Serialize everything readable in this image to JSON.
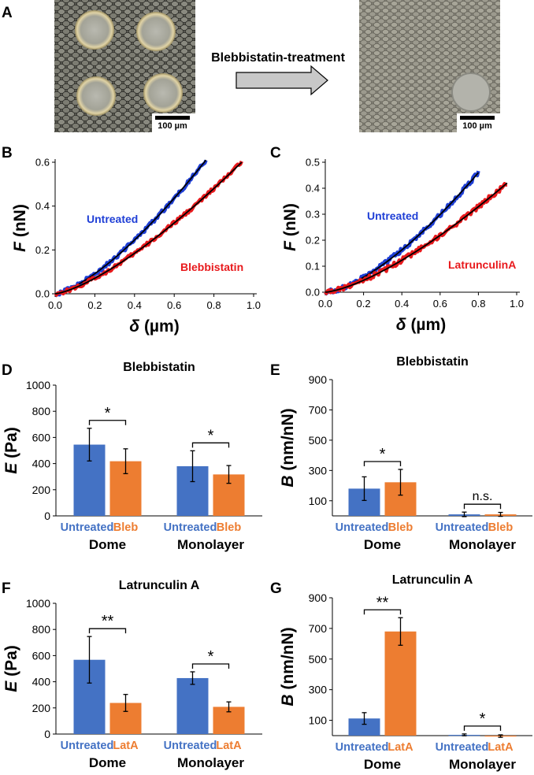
{
  "colors": {
    "untreated_bar": "#4472c4",
    "treated_bar": "#ed7d31",
    "untreated_curve": "#1f3fd6",
    "treated_curve": "#e8191c",
    "fit_line": "#000000",
    "untreated_label": "#1f3fd6",
    "treated_label": "#e8191c",
    "arrow_fill": "#c8c8c8"
  },
  "panel_a": {
    "letter": "A",
    "arrow_label": "Blebbistatin-treatment",
    "scale_bar_left": "100 µm",
    "scale_bar_right": "100 µm"
  },
  "chart_data": [
    {
      "panel": "B",
      "type": "line",
      "x_symbol": "δ",
      "x_unit": "(µm)",
      "y_symbol": "F",
      "y_unit": "(nN)",
      "xlim": [
        0,
        1.0
      ],
      "ylim": [
        0,
        0.6
      ],
      "xticks": [
        "0.0",
        "0.2",
        "0.4",
        "0.6",
        "0.8",
        "1.0"
      ],
      "yticks": [
        "0.0",
        "0.2",
        "0.4",
        "0.6"
      ],
      "series": [
        {
          "name": "Untreated",
          "color_key": "untreated_curve",
          "x_max": 0.76,
          "y_max": 0.61,
          "exponent": 1.42
        },
        {
          "name": "Blebbistatin",
          "color_key": "treated_curve",
          "x_max": 0.94,
          "y_max": 0.6,
          "exponent": 1.38
        }
      ]
    },
    {
      "panel": "C",
      "type": "line",
      "x_symbol": "δ",
      "x_unit": "(µm)",
      "y_symbol": "F",
      "y_unit": "(nN)",
      "xlim": [
        0,
        1.0
      ],
      "ylim": [
        0,
        0.5
      ],
      "xticks": [
        "0.0",
        "0.2",
        "0.4",
        "0.6",
        "0.8",
        "1.0"
      ],
      "yticks": [
        "0.0",
        "0.1",
        "0.2",
        "0.3",
        "0.4",
        "0.5"
      ],
      "series": [
        {
          "name": "Untreated",
          "color_key": "untreated_curve",
          "x_max": 0.8,
          "y_max": 0.46,
          "exponent": 1.5
        },
        {
          "name": "LatrunculinA",
          "color_key": "treated_curve",
          "x_max": 0.95,
          "y_max": 0.42,
          "exponent": 1.42
        }
      ]
    },
    {
      "panel": "D",
      "type": "bar",
      "title": "Blebbistatin",
      "y_symbol": "E",
      "y_unit": "(Pa)",
      "ylim": [
        0,
        1000
      ],
      "yticks": [
        "0",
        "200",
        "400",
        "600",
        "800",
        "1000"
      ],
      "groups": [
        "Dome",
        "Monolayer"
      ],
      "labels": [
        "Untreated",
        "Bleb"
      ],
      "values": [
        [
          545,
          418
        ],
        [
          380,
          317
        ]
      ],
      "errors": [
        [
          125,
          95
        ],
        [
          118,
          68
        ]
      ],
      "significance": [
        "*",
        "*"
      ]
    },
    {
      "panel": "E",
      "type": "bar",
      "title": "Blebbistatin",
      "y_symbol": "B",
      "y_unit": "(nm/nN)",
      "ylim": [
        0,
        900
      ],
      "yticks": [
        "100",
        "300",
        "500",
        "700",
        "900"
      ],
      "groups": [
        "Dome",
        "Monolayer"
      ],
      "labels": [
        "Untreated",
        "Bleb"
      ],
      "values": [
        [
          180,
          222
        ],
        [
          10,
          10
        ]
      ],
      "errors": [
        [
          78,
          85
        ],
        [
          15,
          13
        ]
      ],
      "significance": [
        "*",
        "n.s."
      ]
    },
    {
      "panel": "F",
      "type": "bar",
      "title": "Latrunculin A",
      "y_symbol": "E",
      "y_unit": "(Pa)",
      "ylim": [
        0,
        1000
      ],
      "yticks": [
        "0",
        "200",
        "400",
        "600",
        "800",
        "1000"
      ],
      "groups": [
        "Dome",
        "Monolayer"
      ],
      "labels": [
        "Untreated",
        "LatA"
      ],
      "values": [
        [
          568,
          238
        ],
        [
          428,
          208
        ]
      ],
      "errors": [
        [
          178,
          65
        ],
        [
          48,
          38
        ]
      ],
      "significance": [
        "**",
        "*"
      ]
    },
    {
      "panel": "G",
      "type": "bar",
      "title": "Latrunculin A",
      "y_symbol": "B",
      "y_unit": "(nm/nN)",
      "ylim": [
        0,
        900
      ],
      "yticks": [
        "100",
        "300",
        "500",
        "700",
        "900"
      ],
      "groups": [
        "Dome",
        "Monolayer"
      ],
      "labels": [
        "Untreated",
        "LatA"
      ],
      "values": [
        [
          112,
          680
        ],
        [
          5,
          -3
        ]
      ],
      "errors": [
        [
          38,
          90
        ],
        [
          6,
          8
        ]
      ],
      "significance": [
        "**",
        "*"
      ]
    }
  ]
}
